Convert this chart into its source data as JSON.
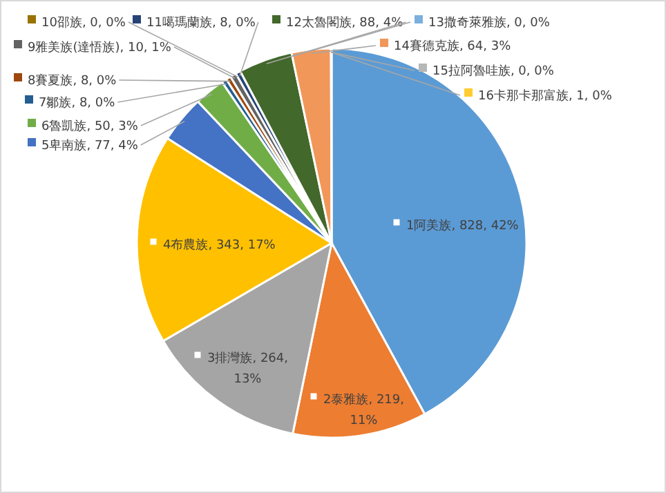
{
  "chart_data": {
    "type": "pie",
    "legend": "top",
    "categories": [
      "1阿美族",
      "2泰雅族",
      "3排灣族",
      "4布農族",
      "5卑南族",
      "6魯凱族",
      "7鄒族",
      "8賽夏族",
      "9雅美族(達悟族)",
      "10邵族",
      "11噶瑪蘭族",
      "12太魯閣族",
      "13撒奇萊雅族",
      "14賽德克族",
      "15拉阿魯哇族",
      "16卡那卡那富族"
    ],
    "values": [
      828,
      219,
      264,
      343,
      77,
      50,
      8,
      8,
      10,
      0,
      8,
      88,
      0,
      64,
      0,
      1
    ],
    "value_labels": [
      "828, 42%",
      "219, 11%",
      "264, 13%",
      "343, 17%",
      "77, 4%",
      "50, 3%",
      "8, 0%",
      "8, 0%",
      "10, 1%",
      "0, 0%",
      "8, 0%",
      "88, 4%",
      "0, 0%",
      "64, 3%",
      "0, 0%",
      "1, 0%"
    ],
    "colors": [
      "#5b9bd5",
      "#ed7d31",
      "#a5a5a5",
      "#ffc000",
      "#4472c4",
      "#70ad47",
      "#255e91",
      "#9e480e",
      "#636363",
      "#997300",
      "#264478",
      "#43682b",
      "#7cafdd",
      "#f1975a",
      "#b7b7b7",
      "#ffcd33"
    ]
  }
}
